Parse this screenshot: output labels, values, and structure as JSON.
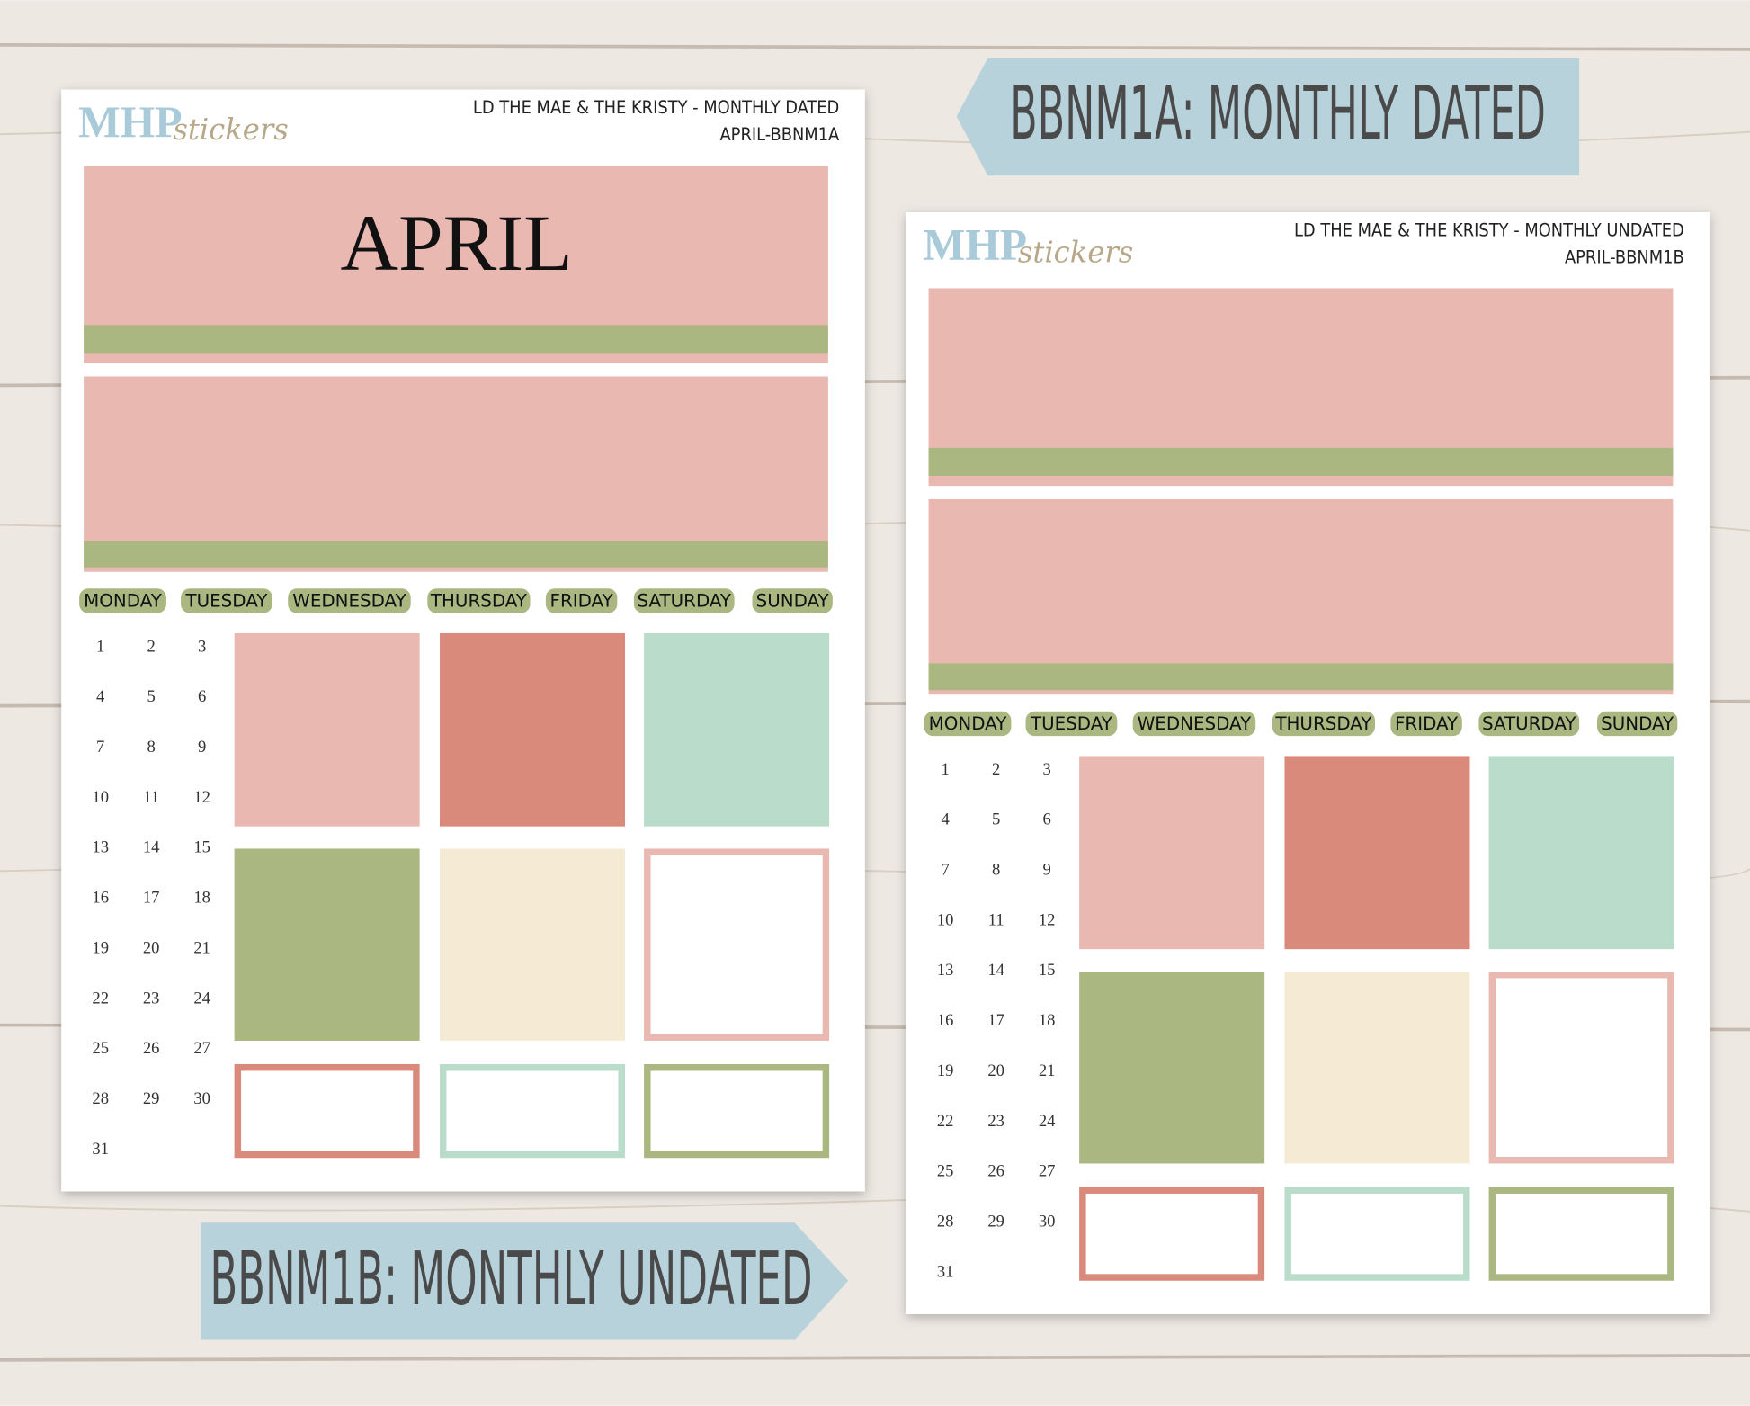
{
  "labels": {
    "dated": "BBNM1A: MONTHLY DATED",
    "undated": "BBNM1B: MONTHLY UNDATED"
  },
  "sheets": [
    {
      "brand": "MHP",
      "brand_script": "stickers",
      "title": "LD THE MAE & THE KRISTY - MONTHLY DATED",
      "code": "APRIL-BBNM1A",
      "month": "APRIL",
      "weekdays": [
        "MONDAY",
        "TUESDAY",
        "WEDNESDAY",
        "THURSDAY",
        "FRIDAY",
        "SATURDAY",
        "SUNDAY"
      ],
      "dates": [
        1,
        2,
        3,
        4,
        5,
        6,
        7,
        8,
        9,
        10,
        11,
        12,
        13,
        14,
        15,
        16,
        17,
        18,
        19,
        20,
        21,
        22,
        23,
        24,
        25,
        26,
        27,
        28,
        29,
        30,
        31
      ]
    },
    {
      "brand": "MHP",
      "brand_script": "stickers",
      "title": "LD THE MAE & THE KRISTY - MONTHLY UNDATED",
      "code": "APRIL-BBNM1B",
      "weekdays": [
        "MONDAY",
        "TUESDAY",
        "WEDNESDAY",
        "THURSDAY",
        "FRIDAY",
        "SATURDAY",
        "SUNDAY"
      ],
      "dates": [
        1,
        2,
        3,
        4,
        5,
        6,
        7,
        8,
        9,
        10,
        11,
        12,
        13,
        14,
        15,
        16,
        17,
        18,
        19,
        20,
        21,
        22,
        23,
        24,
        25,
        26,
        27,
        28,
        29,
        30,
        31
      ]
    }
  ]
}
